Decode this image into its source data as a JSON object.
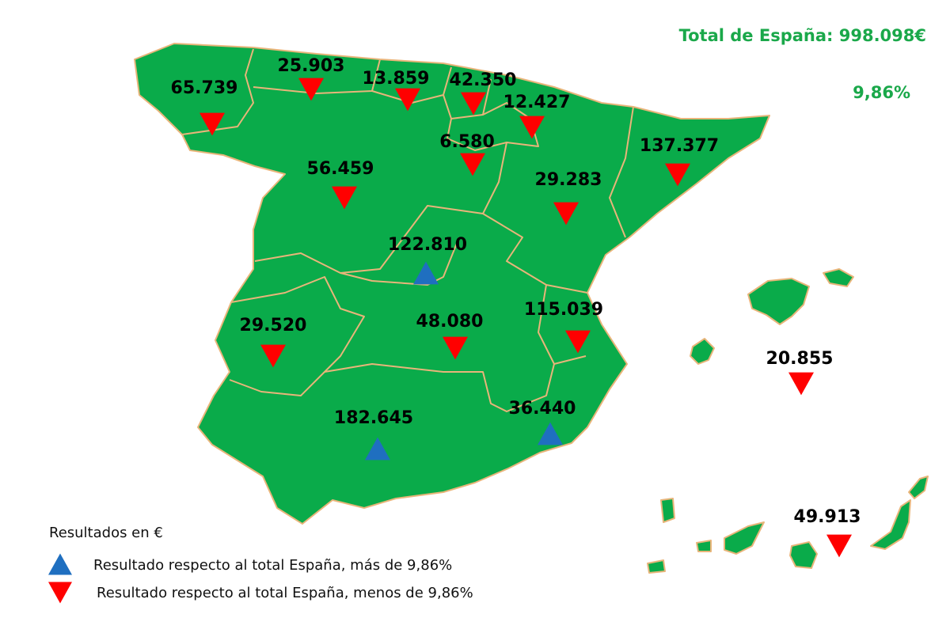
{
  "header": {
    "total": "Total de España: 998.098€",
    "rate": "9,86%"
  },
  "colors": {
    "land": "#0aab4a",
    "header": "#1aa84a",
    "up": "#1f6fc0",
    "down": "#ff0000"
  },
  "regions": [
    {
      "value": "65.739",
      "trend": "down"
    },
    {
      "value": "25.903",
      "trend": "down"
    },
    {
      "value": "13.859",
      "trend": "down"
    },
    {
      "value": "42.350",
      "trend": "down"
    },
    {
      "value": "12.427",
      "trend": "down"
    },
    {
      "value": "6.580",
      "trend": "down"
    },
    {
      "value": "56.459",
      "trend": "down"
    },
    {
      "value": "137.377",
      "trend": "down"
    },
    {
      "value": "29.283",
      "trend": "down"
    },
    {
      "value": "122.810",
      "trend": "up"
    },
    {
      "value": "29.520",
      "trend": "down"
    },
    {
      "value": "48.080",
      "trend": "down"
    },
    {
      "value": "115.039",
      "trend": "down"
    },
    {
      "value": "20.855",
      "trend": "down"
    },
    {
      "value": "182.645",
      "trend": "up"
    },
    {
      "value": "36.440",
      "trend": "up"
    },
    {
      "value": "49.913",
      "trend": "down"
    }
  ],
  "legend": {
    "title": "Resultados en €",
    "items": [
      {
        "text": "Resultado respecto al total España, más de 9,86%",
        "trend": "up"
      },
      {
        "text": "Resultado respecto al total España, menos de 9,86%",
        "trend": "down"
      }
    ]
  }
}
